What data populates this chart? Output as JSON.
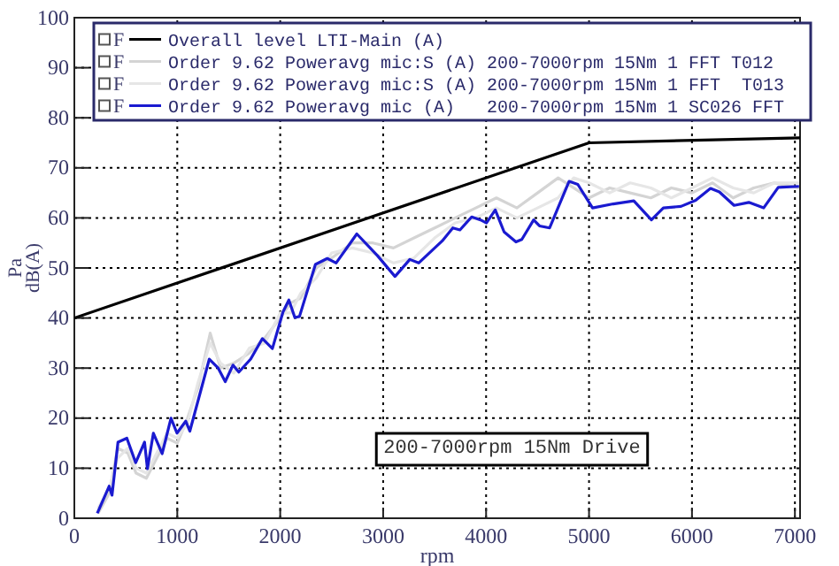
{
  "chart_data": {
    "type": "line",
    "xlabel": "rpm",
    "ylabel": "Pa\ndB(A)",
    "xlim": [
      0,
      7050
    ],
    "ylim": [
      0,
      100
    ],
    "xticks": [
      0,
      1000,
      2000,
      3000,
      4000,
      5000,
      6000,
      7000
    ],
    "yticks": [
      0,
      10,
      20,
      30,
      40,
      50,
      60,
      70,
      80,
      90,
      100
    ],
    "grid": true,
    "legend": "top right",
    "line_style": "solid",
    "marker": "none",
    "annotations": [
      "F",
      "F",
      "F",
      "F",
      "200-7000rpm 15Nm Drive"
    ],
    "series": [
      {
        "name": "Overall level LTI-Main (A)",
        "color": "#000000",
        "x": [
          0,
          5000,
          7050
        ],
        "values": [
          40,
          75,
          76
        ]
      },
      {
        "name": "Order 9.62 Poweravg mic:S (A) 200-7000rpm 15Nm 1 FFT T012",
        "color": "#d4d4d4",
        "x": [
          230,
          340,
          420,
          520,
          600,
          700,
          800,
          900,
          1000,
          1100,
          1200,
          1320,
          1420,
          1550,
          1700,
          1850,
          2000,
          2100,
          2200,
          2350,
          2500,
          2700,
          2900,
          3100,
          3300,
          3500,
          3700,
          3900,
          4100,
          4300,
          4500,
          4700,
          4850,
          5000,
          5200,
          5400,
          5600,
          5800,
          6000,
          6200,
          6400,
          6600,
          6800,
          7040
        ],
        "values": [
          1,
          5,
          14,
          13,
          9,
          8,
          12,
          16,
          15,
          20,
          26,
          37,
          30,
          31,
          33,
          36,
          40,
          43,
          44,
          50,
          52,
          55,
          55,
          54,
          56,
          58,
          60,
          62,
          64,
          62,
          65,
          68,
          66,
          64,
          66,
          65,
          64,
          66,
          65,
          67,
          64,
          66,
          67,
          66
        ]
      },
      {
        "name": "Order 9.62 Poweravg mic:S (A) 200-7000rpm 15Nm 1 FFT  T013",
        "color": "#e6e6e6",
        "x": [
          230,
          340,
          420,
          520,
          600,
          700,
          800,
          900,
          1000,
          1100,
          1200,
          1320,
          1420,
          1550,
          1700,
          1850,
          2000,
          2100,
          2200,
          2350,
          2500,
          2700,
          2900,
          3100,
          3300,
          3500,
          3700,
          3900,
          4100,
          4300,
          4500,
          4700,
          4850,
          5000,
          5200,
          5400,
          5600,
          5800,
          6000,
          6200,
          6400,
          6600,
          6800,
          7040
        ],
        "values": [
          2,
          6,
          12,
          14,
          10,
          9,
          13,
          17,
          16,
          19,
          27,
          35,
          31,
          29,
          34,
          35,
          41,
          41,
          45,
          48,
          53,
          54,
          53,
          51,
          52,
          56,
          59,
          60,
          62,
          60,
          62,
          64,
          68,
          67,
          65,
          67,
          66,
          64,
          66,
          68,
          66,
          65,
          67,
          67
        ]
      },
      {
        "name": "Order 9.62 Poweravg mic (A)   200-7000rpm 15Nm 1 SC026 FFT",
        "color": "#1a1ad0",
        "x": [
          223,
          338,
          366,
          424,
          510,
          596,
          682,
          710,
          768,
          853,
          939,
          997,
          1082,
          1122,
          1311,
          1397,
          1466,
          1541,
          1598,
          1713,
          1827,
          1924,
          2027,
          2084,
          2142,
          2187,
          2342,
          2457,
          2543,
          2744,
          2943,
          3115,
          3259,
          3345,
          3574,
          3677,
          3746,
          3860,
          3946,
          4003,
          4089,
          4175,
          4290,
          4347,
          4462,
          4519,
          4617,
          4806,
          4891,
          5034,
          5235,
          5435,
          5606,
          5722,
          5893,
          6036,
          6180,
          6266,
          6409,
          6552,
          6696,
          6838,
          7040
        ],
        "values": [
          1,
          6.4,
          4.6,
          15.2,
          16,
          11.1,
          15.2,
          9.9,
          17,
          12.9,
          20,
          17,
          19.4,
          17.4,
          31.8,
          30,
          27.3,
          30.6,
          29.2,
          31.8,
          35.9,
          33.9,
          41.2,
          43.6,
          40.1,
          40.3,
          50.7,
          51.9,
          51,
          56.8,
          52.5,
          48.3,
          51.7,
          51,
          55.4,
          58,
          57.6,
          60.2,
          59.6,
          59,
          61.6,
          57.2,
          55.2,
          55.7,
          59.6,
          58.4,
          58,
          67.3,
          66.7,
          62,
          62.8,
          63.4,
          59.6,
          62,
          62.3,
          63.5,
          65.9,
          65.2,
          62.5,
          63.1,
          62,
          66.1,
          66.3
        ]
      }
    ]
  }
}
